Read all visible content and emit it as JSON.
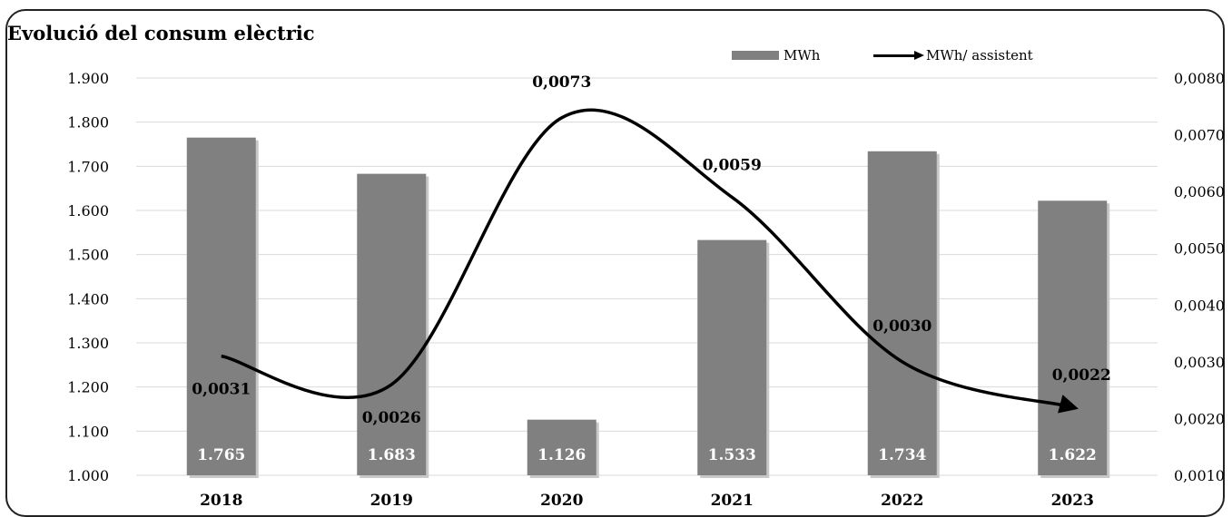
{
  "chart_data": {
    "type": "bar+line",
    "title": "Evolució del consum elèctric",
    "categories": [
      "2018",
      "2019",
      "2020",
      "2021",
      "2022",
      "2023"
    ],
    "series": [
      {
        "name": "MWh",
        "type": "bar",
        "axis": "left",
        "color": "#808080",
        "values": [
          1765,
          1683,
          1126,
          1533,
          1734,
          1622
        ],
        "data_labels": [
          "1.765",
          "1.683",
          "1.126",
          "1.533",
          "1.734",
          "1.622"
        ]
      },
      {
        "name": "MWh/ assistent",
        "type": "line",
        "axis": "right",
        "color": "#000000",
        "smooth": true,
        "end_arrow": true,
        "values": [
          0.0031,
          0.0026,
          0.0073,
          0.0059,
          0.003,
          0.0022
        ],
        "data_labels": [
          "0,0031",
          "0,0026",
          "0,0073",
          "0,0059",
          "0,0030",
          "0,0022"
        ]
      }
    ],
    "y_left": {
      "ylim": [
        1000,
        1900
      ],
      "ticks": [
        "1.000",
        "1.100",
        "1.200",
        "1.300",
        "1.400",
        "1.500",
        "1.600",
        "1.700",
        "1.800",
        "1.900"
      ]
    },
    "y_right": {
      "ylim": [
        0.001,
        0.008
      ],
      "ticks": [
        "0,0010",
        "0,0020",
        "0,0030",
        "0,0040",
        "0,0050",
        "0,0060",
        "0,0070",
        "0,0080"
      ]
    },
    "grid": true,
    "legend": "top-right"
  }
}
